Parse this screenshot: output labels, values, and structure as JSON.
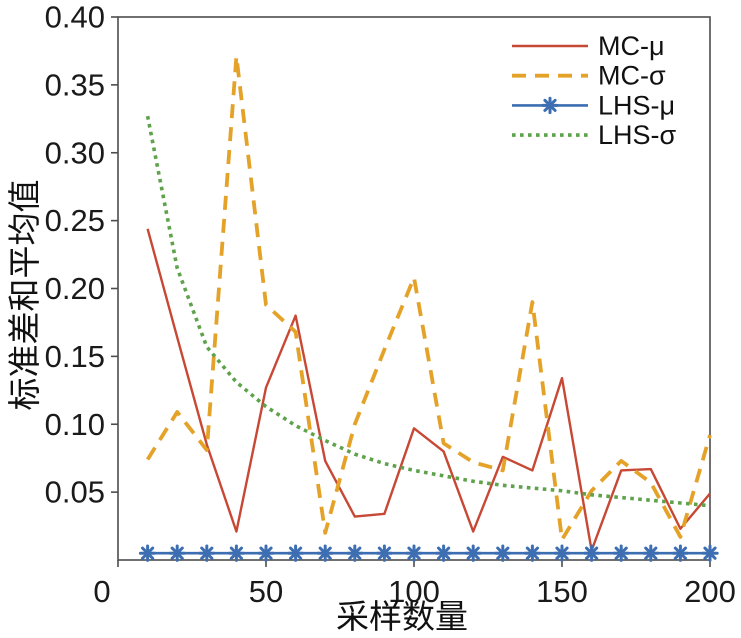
{
  "figure": {
    "background": "#ffffff",
    "axis_color": "#4d4d4d",
    "text_color": "#1a1a1a"
  },
  "chart_data": {
    "type": "line",
    "title": "",
    "xlabel": "采样数量",
    "ylabel": "标准差和平均值",
    "xlim": [
      0,
      200
    ],
    "ylim": [
      0,
      0.4
    ],
    "grid": false,
    "legend_position": "top-right",
    "x_ticks": [
      {
        "value": 0,
        "label": "0"
      },
      {
        "value": 50,
        "label": "50"
      },
      {
        "value": 100,
        "label": "100"
      },
      {
        "value": 150,
        "label": "150"
      },
      {
        "value": 200,
        "label": "200"
      }
    ],
    "y_ticks": [
      {
        "value": 0.05,
        "label": "0.05"
      },
      {
        "value": 0.1,
        "label": "0.10"
      },
      {
        "value": 0.15,
        "label": "0.15"
      },
      {
        "value": 0.2,
        "label": "0.20"
      },
      {
        "value": 0.25,
        "label": "0.25"
      },
      {
        "value": 0.3,
        "label": "0.30"
      },
      {
        "value": 0.35,
        "label": "0.35"
      },
      {
        "value": 0.4,
        "label": "0.40"
      }
    ],
    "x": [
      10,
      20,
      30,
      40,
      50,
      60,
      70,
      80,
      90,
      100,
      110,
      120,
      130,
      140,
      150,
      160,
      170,
      180,
      190,
      200
    ],
    "series": [
      {
        "name": "MC-μ",
        "color": "#c74834",
        "style": "solid",
        "width": 2.4,
        "marker": "none",
        "values": [
          0.244,
          0.164,
          0.085,
          0.021,
          0.127,
          0.18,
          0.073,
          0.032,
          0.034,
          0.097,
          0.08,
          0.021,
          0.076,
          0.066,
          0.134,
          0.007,
          0.066,
          0.067,
          0.023,
          0.049
        ]
      },
      {
        "name": "MC-σ",
        "color": "#e4a229",
        "style": "dashed",
        "width": 3.8,
        "marker": "none",
        "values": [
          0.074,
          0.109,
          0.081,
          0.371,
          0.188,
          0.168,
          0.02,
          0.1,
          0.155,
          0.208,
          0.086,
          0.072,
          0.066,
          0.19,
          0.015,
          0.051,
          0.073,
          0.057,
          0.017,
          0.092
        ]
      },
      {
        "name": "LHS-μ",
        "color": "#3e6eb2",
        "style": "solid",
        "width": 2.6,
        "marker": "asterisk",
        "values": [
          0.005,
          0.005,
          0.005,
          0.005,
          0.005,
          0.005,
          0.005,
          0.005,
          0.005,
          0.005,
          0.005,
          0.005,
          0.005,
          0.005,
          0.005,
          0.005,
          0.005,
          0.005,
          0.005,
          0.005
        ]
      },
      {
        "name": "LHS-σ",
        "color": "#5ea24c",
        "style": "dotted",
        "width": 3.6,
        "marker": "none",
        "values": [
          0.327,
          0.215,
          0.157,
          0.131,
          0.113,
          0.099,
          0.088,
          0.078,
          0.071,
          0.066,
          0.062,
          0.058,
          0.055,
          0.053,
          0.051,
          0.048,
          0.046,
          0.044,
          0.042,
          0.04
        ]
      }
    ]
  }
}
